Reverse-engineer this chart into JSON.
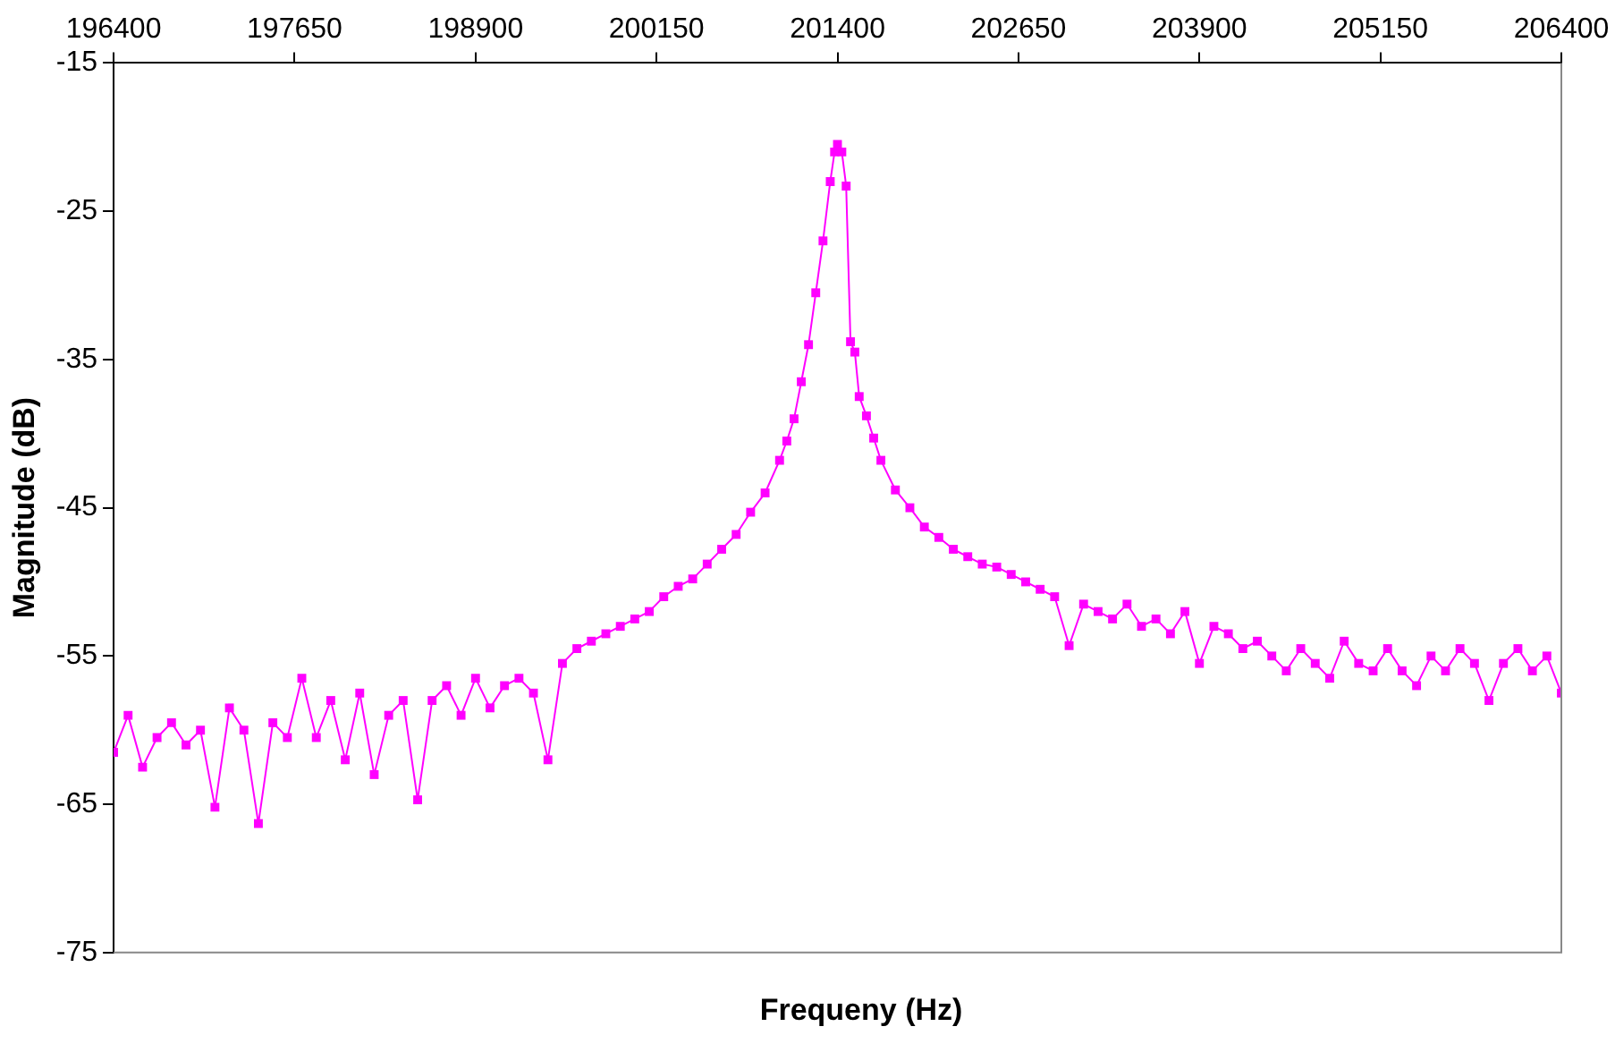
{
  "chart_data": {
    "type": "line",
    "xlabel": "Frequeny (Hz)",
    "ylabel": "Magnitude (dB)",
    "x": [
      196400,
      196500,
      196600,
      196700,
      196800,
      196900,
      197000,
      197100,
      197200,
      197300,
      197400,
      197500,
      197600,
      197700,
      197800,
      197900,
      198000,
      198100,
      198200,
      198300,
      198400,
      198500,
      198600,
      198700,
      198800,
      198900,
      199000,
      199100,
      199200,
      199300,
      199400,
      199500,
      199600,
      199700,
      199800,
      199900,
      200000,
      200100,
      200200,
      200300,
      200400,
      200500,
      200600,
      200700,
      200800,
      200900,
      201000,
      201050,
      201100,
      201150,
      201200,
      201250,
      201300,
      201350,
      201380,
      201400,
      201430,
      201460,
      201490,
      201520,
      201550,
      201600,
      201650,
      201700,
      201800,
      201900,
      202000,
      202100,
      202200,
      202300,
      202400,
      202500,
      202600,
      202700,
      202800,
      202900,
      203000,
      203100,
      203200,
      203300,
      203400,
      203500,
      203600,
      203700,
      203800,
      203900,
      204000,
      204100,
      204200,
      204300,
      204400,
      204500,
      204600,
      204700,
      204800,
      204900,
      205000,
      205100,
      205200,
      205300,
      205400,
      205500,
      205600,
      205700,
      205800,
      205900,
      206000,
      206100,
      206200,
      206300,
      206400
    ],
    "series": [
      {
        "color": "#ff00ff",
        "values": [
          -61.5,
          -59,
          -62.5,
          -60.5,
          -59.5,
          -61,
          -60,
          -65.2,
          -58.5,
          -60,
          -66.3,
          -59.5,
          -60.5,
          -56.5,
          -60.5,
          -58,
          -62,
          -57.5,
          -63,
          -59,
          -58,
          -64.7,
          -58,
          -57,
          -59,
          -56.5,
          -58.5,
          -57,
          -56.5,
          -57.5,
          -62,
          -55.5,
          -54.5,
          -54,
          -53.5,
          -53,
          -52.5,
          -52,
          -51,
          -50.3,
          -49.8,
          -48.8,
          -47.8,
          -46.8,
          -45.3,
          -44,
          -41.8,
          -40.5,
          -39,
          -36.5,
          -34,
          -30.5,
          -27,
          -23,
          -21,
          -20.5,
          -21,
          -23.3,
          -33.8,
          -34.5,
          -37.5,
          -38.8,
          -40.3,
          -41.8,
          -43.8,
          -45,
          -46.3,
          -47,
          -47.8,
          -48.3,
          -48.8,
          -49,
          -49.5,
          -50,
          -50.5,
          -51,
          -54.3,
          -51.5,
          -52,
          -52.5,
          -51.5,
          -53,
          -52.5,
          -53.5,
          -52,
          -55.5,
          -53,
          -53.5,
          -54.5,
          -54,
          -55,
          -56,
          -54.5,
          -55.5,
          -56.5,
          -54,
          -55.5,
          -56,
          -54.5,
          -56,
          -57,
          -55,
          -56,
          -54.5,
          -55.5,
          -58,
          -55.5,
          -54.5,
          -56,
          -55,
          -57.5
        ]
      }
    ],
    "xlim": [
      196400,
      206400
    ],
    "xticks": [
      196400,
      197650,
      198900,
      200150,
      201400,
      202650,
      203900,
      205150,
      206400
    ],
    "ylim": [
      -75,
      -15
    ],
    "yticks": [
      -75,
      -65,
      -55,
      -45,
      -35,
      -25,
      -15
    ],
    "grid": false,
    "legend": false,
    "marker": "square",
    "line_style": "solid"
  }
}
